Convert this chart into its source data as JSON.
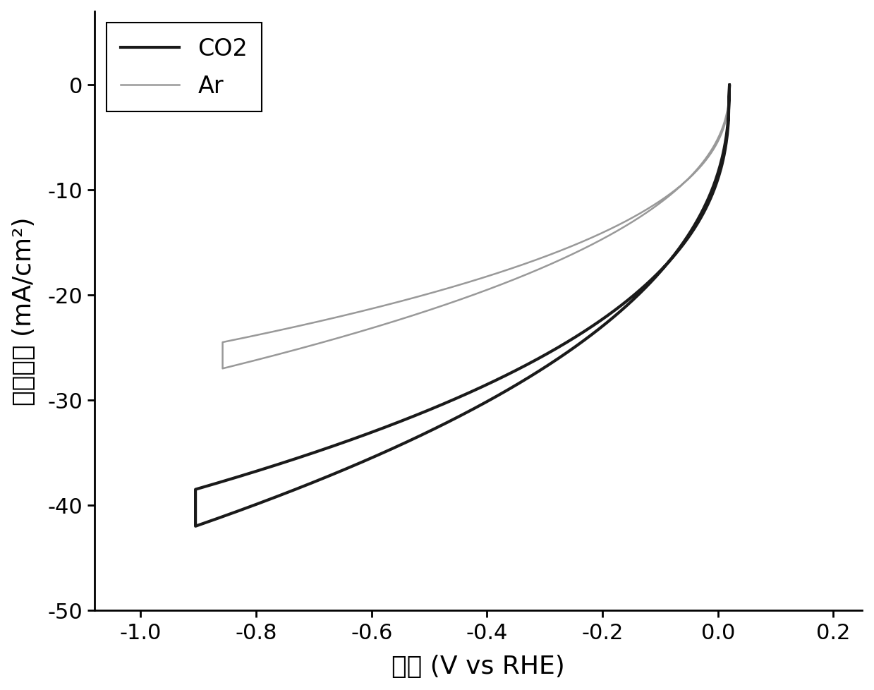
{
  "xlabel": "电位 (V vs RHE)",
  "ylabel": "电流密度 (mA/cm²)",
  "xlim": [
    -1.08,
    0.25
  ],
  "ylim": [
    -50,
    7
  ],
  "xticks": [
    -1.0,
    -0.8,
    -0.6,
    -0.4,
    -0.2,
    0.0,
    0.2
  ],
  "yticks": [
    -50,
    -40,
    -30,
    -20,
    -10,
    0
  ],
  "background_color": "#ffffff",
  "co2_color": "#1a1a1a",
  "ar_color": "#999999",
  "co2_linewidth": 3.0,
  "ar_linewidth": 1.8,
  "legend_co2": "CO2",
  "legend_ar": "Ar"
}
